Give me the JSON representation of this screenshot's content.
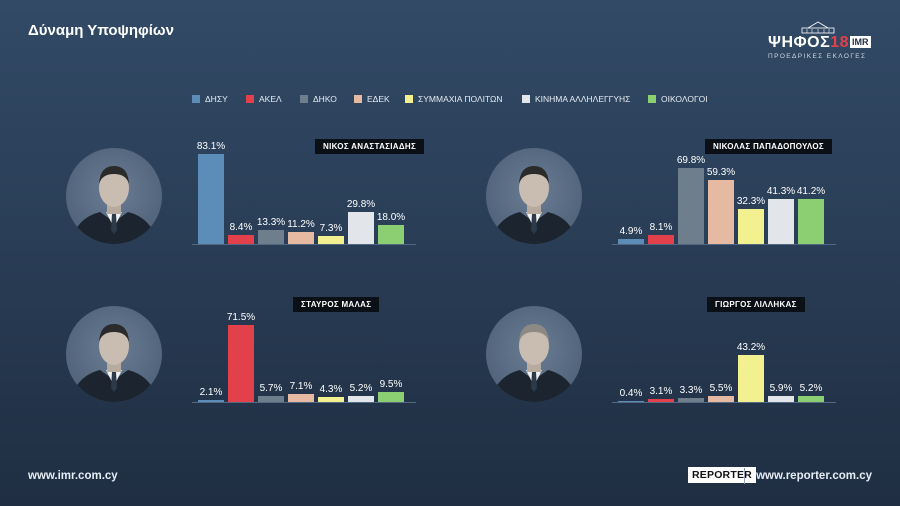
{
  "title": "Δύναμη Υποψηφίων",
  "brand": {
    "main": "ΨΗΦΟΣ",
    "number": "18",
    "imr": "IMR",
    "subtitle": "ΠΡΟΕΔΡΙΚΕΣ ΕΚΛΟΓΕΣ"
  },
  "legend": [
    {
      "label": "ΔΗΣΥ",
      "color": "#5b8db8"
    },
    {
      "label": "ΑΚΕΛ",
      "color": "#e2414b"
    },
    {
      "label": "ΔΗΚΟ",
      "color": "#6f7e8c"
    },
    {
      "label": "ΕΔΕΚ",
      "color": "#e6b9a3"
    },
    {
      "label": "ΣΥΜΜΑΧΙΑ ΠΟΛΙΤΩΝ",
      "color": "#f3f08f"
    },
    {
      "label": "ΚΙΝΗΜΑ ΑΛΛΗΛΕΓΓΥΗΣ",
      "color": "#e2e5ea"
    },
    {
      "label": "ΟΙΚΟΛΟΓΟΙ",
      "color": "#8bcf72"
    }
  ],
  "chart_data": [
    {
      "type": "bar",
      "title": "ΝΙΚΟΣ ΑΝΑΣΤΑΣΙΑΔΗΣ",
      "unit": "%",
      "categories": [
        "ΔΗΣΥ",
        "ΑΚΕΛ",
        "ΔΗΚΟ",
        "ΕΔΕΚ",
        "ΣΥΜΜΑΧΙΑ ΠΟΛΙΤΩΝ",
        "ΚΙΝΗΜΑ ΑΛΛΗΛΕΓΓΥΗΣ",
        "ΟΙΚΟΛΟΓΟΙ"
      ],
      "values": [
        83.1,
        8.4,
        13.3,
        11.2,
        7.3,
        29.8,
        18.0
      ],
      "labels": [
        "83.1%",
        "8.4%",
        "13.3%",
        "11.2%",
        "7.3%",
        "29.8%",
        "18.0%"
      ]
    },
    {
      "type": "bar",
      "title": "ΝΙΚΟΛΑΣ ΠΑΠΑΔΟΠΟΥΛΟΣ",
      "unit": "%",
      "categories": [
        "ΔΗΣΥ",
        "ΑΚΕΛ",
        "ΔΗΚΟ",
        "ΕΔΕΚ",
        "ΣΥΜΜΑΧΙΑ ΠΟΛΙΤΩΝ",
        "ΚΙΝΗΜΑ ΑΛΛΗΛΕΓΓΥΗΣ",
        "ΟΙΚΟΛΟΓΟΙ"
      ],
      "values": [
        4.9,
        8.1,
        69.8,
        59.3,
        32.3,
        41.3,
        41.2
      ],
      "labels": [
        "4.9%",
        "8.1%",
        "69.8%",
        "59.3%",
        "32.3%",
        "41.3%",
        "41.2%"
      ]
    },
    {
      "type": "bar",
      "title": "ΣΤΑΥΡΟΣ ΜΑΛΑΣ",
      "unit": "%",
      "categories": [
        "ΔΗΣΥ",
        "ΑΚΕΛ",
        "ΔΗΚΟ",
        "ΕΔΕΚ",
        "ΣΥΜΜΑΧΙΑ ΠΟΛΙΤΩΝ",
        "ΚΙΝΗΜΑ ΑΛΛΗΛΕΓΓΥΗΣ",
        "ΟΙΚΟΛΟΓΟΙ"
      ],
      "values": [
        2.1,
        71.5,
        5.7,
        7.1,
        4.3,
        5.2,
        9.5
      ],
      "labels": [
        "2.1%",
        "71.5%",
        "5.7%",
        "7.1%",
        "4.3%",
        "5.2%",
        "9.5%"
      ]
    },
    {
      "type": "bar",
      "title": "ΓΙΩΡΓΟΣ ΛΙΛΛΗΚΑΣ",
      "unit": "%",
      "categories": [
        "ΔΗΣΥ",
        "ΑΚΕΛ",
        "ΔΗΚΟ",
        "ΕΔΕΚ",
        "ΣΥΜΜΑΧΙΑ ΠΟΛΙΤΩΝ",
        "ΚΙΝΗΜΑ ΑΛΛΗΛΕΓΓΥΗΣ",
        "ΟΙΚΟΛΟΓΟΙ"
      ],
      "values": [
        0.4,
        3.1,
        3.3,
        5.5,
        43.2,
        5.9,
        5.2
      ],
      "labels": [
        "0.4%",
        "3.1%",
        "3.3%",
        "5.5%",
        "43.2%",
        "5.9%",
        "5.2%"
      ]
    }
  ],
  "footer": {
    "left": "www.imr.com.cy",
    "reporter": "REPORTER",
    "right": "www.reporter.com.cy"
  }
}
